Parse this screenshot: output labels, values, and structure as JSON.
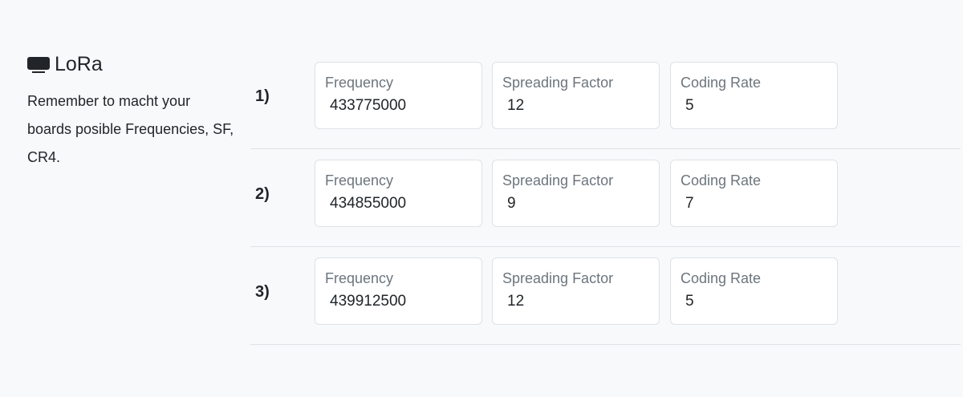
{
  "section": {
    "title": "LoRa",
    "icon": "display-icon",
    "description": "Remember to macht your boards posible Frequencies, SF, CR4."
  },
  "labels": {
    "frequency": "Frequency",
    "spreading_factor": "Spreading Factor",
    "coding_rate": "Coding Rate"
  },
  "rows": [
    {
      "number": "1)",
      "frequency": "433775000",
      "spreading_factor": "12",
      "coding_rate": "5"
    },
    {
      "number": "2)",
      "frequency": "434855000",
      "spreading_factor": "9",
      "coding_rate": "7"
    },
    {
      "number": "3)",
      "frequency": "439912500",
      "spreading_factor": "12",
      "coding_rate": "5"
    }
  ]
}
